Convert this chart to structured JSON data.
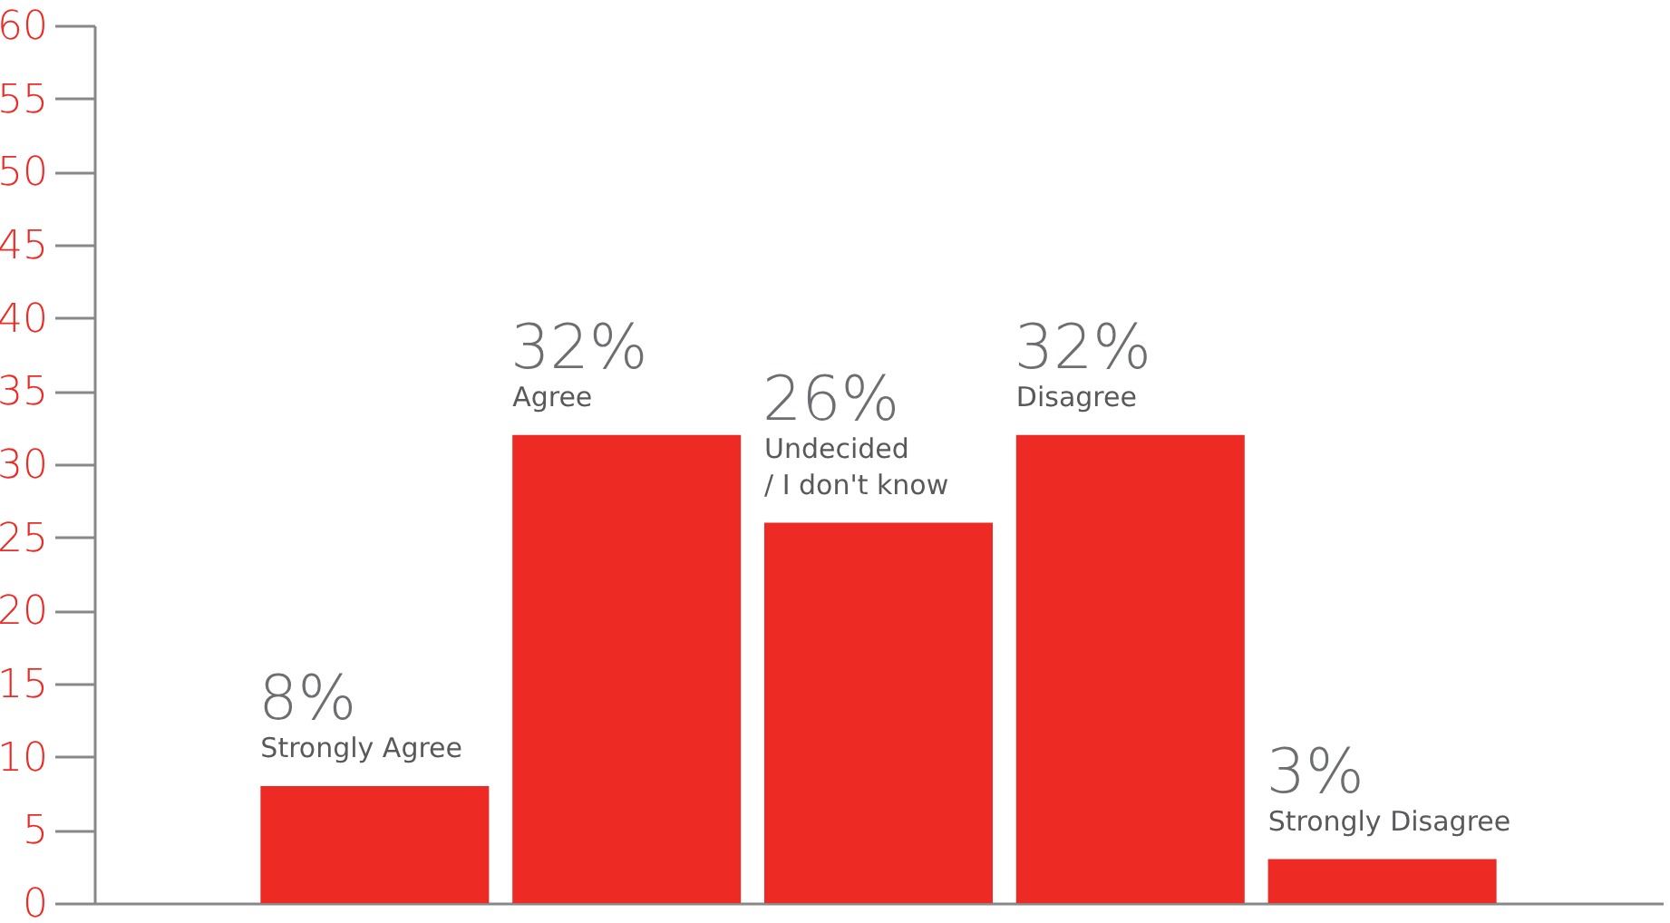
{
  "chart_data": {
    "type": "bar",
    "categories": [
      "Strongly Agree",
      "Agree",
      "Undecided\n/ I don't know",
      "Disagree",
      "Strongly Disagree"
    ],
    "values": [
      8,
      32,
      26,
      32,
      3
    ],
    "value_labels": [
      "8%",
      "32%",
      "26%",
      "32%",
      "3%"
    ],
    "color": "#ee2a24",
    "ylim": [
      0,
      60
    ],
    "yticks": [
      0,
      5,
      10,
      15,
      20,
      25,
      30,
      35,
      40,
      45,
      50,
      55,
      60
    ],
    "grid": false,
    "tick_labels": "y"
  }
}
